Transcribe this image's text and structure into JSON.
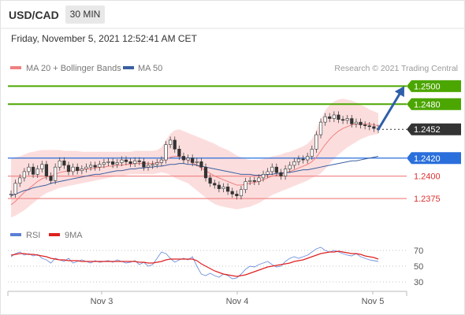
{
  "header": {
    "symbol": "USD/CAD",
    "timeframe": "30 MIN",
    "datetime": "Friday, November 5, 2021 12:52:41 AM CET"
  },
  "legend": {
    "ma": "MA 20 + Bollinger Bands",
    "ma50": "MA 50",
    "credit": "Research © 2021 Trading Central",
    "ma_color": "#f08080",
    "ma50_color": "#3a5fa0"
  },
  "chart_data": [
    {
      "type": "line",
      "title": "",
      "x_ticks": [
        "Nov 3",
        "Nov 4",
        "Nov 5"
      ],
      "ylim": [
        1.2355,
        1.251
      ],
      "levels": [
        {
          "value": 1.25,
          "label": "1.2500",
          "kind": "resistance",
          "color": "#4ca600"
        },
        {
          "value": 1.248,
          "label": "1.2480",
          "kind": "resistance",
          "color": "#4ca600"
        },
        {
          "value": 1.2452,
          "label": "1.2452",
          "kind": "last-price",
          "color": "#333333"
        },
        {
          "value": 1.242,
          "label": "1.2420",
          "kind": "pivot",
          "color": "#2a6fdb"
        },
        {
          "value": 1.24,
          "label": "1.2400",
          "kind": "support",
          "color": "#e05050"
        },
        {
          "value": 1.2375,
          "label": "1.2375",
          "kind": "support",
          "color": "#e05050"
        }
      ],
      "price": [
        1.238,
        1.2392,
        1.2398,
        1.2405,
        1.241,
        1.2402,
        1.2408,
        1.2413,
        1.24,
        1.2395,
        1.241,
        1.2417,
        1.2412,
        1.2405,
        1.241,
        1.2406,
        1.2408,
        1.241,
        1.2412,
        1.241,
        1.2413,
        1.2415,
        1.2416,
        1.2413,
        1.2415,
        1.2418,
        1.2416,
        1.2414,
        1.2417,
        1.2416,
        1.241,
        1.2412,
        1.2413,
        1.2415,
        1.2418,
        1.2435,
        1.244,
        1.243,
        1.2422,
        1.2418,
        1.242,
        1.2415,
        1.2416,
        1.241,
        1.2398,
        1.2392,
        1.239,
        1.2386,
        1.2388,
        1.2383,
        1.238,
        1.2378,
        1.2385,
        1.2394,
        1.2395,
        1.2394,
        1.2398,
        1.2402,
        1.2405,
        1.241,
        1.2404,
        1.24,
        1.2408,
        1.2412,
        1.2416,
        1.2419,
        1.2418,
        1.2422,
        1.243,
        1.2446,
        1.246,
        1.2466,
        1.2464,
        1.2468,
        1.2463,
        1.2462,
        1.2464,
        1.2458,
        1.246,
        1.2457,
        1.2456,
        1.2455,
        1.2453,
        1.2452
      ],
      "price_forecast": [
        1.2452,
        1.25
      ],
      "series": [
        {
          "name": "MA 20 + Bollinger Bands",
          "values": [
            1.2368,
            1.2372,
            1.2377,
            1.2382,
            1.2386,
            1.239,
            1.2394,
            1.2397,
            1.2399,
            1.24,
            1.2402,
            1.2404,
            1.2405,
            1.2406,
            1.2406,
            1.2407,
            1.2407,
            1.2408,
            1.2408,
            1.2409,
            1.241,
            1.241,
            1.2411,
            1.2411,
            1.2412,
            1.2412,
            1.2413,
            1.2413,
            1.2414,
            1.2414,
            1.2414,
            1.2414,
            1.2414,
            1.2415,
            1.2416,
            1.2419,
            1.2421,
            1.2422,
            1.2422,
            1.242,
            1.2418,
            1.2415,
            1.2412,
            1.2409,
            1.2406,
            1.2403,
            1.24,
            1.2398,
            1.2396,
            1.2394,
            1.2392,
            1.239,
            1.239,
            1.2391,
            1.2392,
            1.2393,
            1.2394,
            1.2396,
            1.2398,
            1.24,
            1.2401,
            1.2402,
            1.2404,
            1.2405,
            1.2407,
            1.2409,
            1.2411,
            1.2413,
            1.2416,
            1.2421,
            1.2428,
            1.2435,
            1.2441,
            1.2446,
            1.245,
            1.2453,
            1.2455,
            1.2457,
            1.2458,
            1.2458,
            1.2458,
            1.2458,
            1.2457,
            1.2456
          ]
        },
        {
          "name": "MA 50",
          "values": [
            1.2378,
            1.238,
            1.2382,
            1.2384,
            1.2385,
            1.2387,
            1.2388,
            1.2389,
            1.239,
            1.2392,
            1.2393,
            1.2394,
            1.2395,
            1.2396,
            1.2397,
            1.2398,
            1.2399,
            1.24,
            1.2401,
            1.2402,
            1.2402,
            1.2403,
            1.2404,
            1.2405,
            1.2406,
            1.2406,
            1.2407,
            1.2408,
            1.2408,
            1.2409,
            1.2409,
            1.241,
            1.241,
            1.2411,
            1.2411,
            1.2412,
            1.2413,
            1.2413,
            1.2414,
            1.2414,
            1.2413,
            1.2413,
            1.2412,
            1.2411,
            1.241,
            1.2409,
            1.2408,
            1.2407,
            1.2406,
            1.2405,
            1.2404,
            1.2403,
            1.2402,
            1.2402,
            1.2402,
            1.2401,
            1.2401,
            1.2401,
            1.2402,
            1.2402,
            1.2403,
            1.2403,
            1.2404,
            1.2404,
            1.2405,
            1.2406,
            1.2407,
            1.2407,
            1.2408,
            1.2409,
            1.241,
            1.2411,
            1.2412,
            1.2413,
            1.2414,
            1.2415,
            1.2416,
            1.2417,
            1.2417,
            1.2418,
            1.2419,
            1.242,
            1.2421,
            1.2422
          ]
        }
      ],
      "bollinger_upper": [
        1.242,
        1.2421,
        1.2422,
        1.2424,
        1.2426,
        1.2427,
        1.2428,
        1.2429,
        1.2429,
        1.2429,
        1.2429,
        1.2429,
        1.2428,
        1.2428,
        1.2428,
        1.2428,
        1.2427,
        1.2427,
        1.2427,
        1.2427,
        1.2427,
        1.2427,
        1.2427,
        1.2427,
        1.2427,
        1.2427,
        1.2427,
        1.2427,
        1.2428,
        1.2428,
        1.2428,
        1.2428,
        1.2428,
        1.2429,
        1.2432,
        1.244,
        1.2447,
        1.2451,
        1.2452,
        1.245,
        1.2448,
        1.2446,
        1.2444,
        1.2442,
        1.244,
        1.2438,
        1.2436,
        1.2433,
        1.2431,
        1.2429,
        1.2426,
        1.2423,
        1.2421,
        1.2419,
        1.2418,
        1.2418,
        1.2418,
        1.2419,
        1.242,
        1.2422,
        1.2423,
        1.2424,
        1.2426,
        1.2427,
        1.2429,
        1.2431,
        1.2433,
        1.2436,
        1.2441,
        1.2451,
        1.2463,
        1.2473,
        1.2479,
        1.2483,
        1.2485,
        1.2486,
        1.2485,
        1.2484,
        1.2482,
        1.2479,
        1.2477,
        1.2474,
        1.2472,
        1.247
      ],
      "bollinger_lower": [
        1.2354,
        1.2356,
        1.2359,
        1.2362,
        1.2366,
        1.237,
        1.2374,
        1.2378,
        1.2381,
        1.2383,
        1.2385,
        1.2387,
        1.2388,
        1.2389,
        1.239,
        1.2391,
        1.2392,
        1.2393,
        1.2394,
        1.2395,
        1.2396,
        1.2397,
        1.2398,
        1.2399,
        1.24,
        1.24,
        1.2401,
        1.2402,
        1.2402,
        1.2402,
        1.2402,
        1.2402,
        1.2402,
        1.2403,
        1.2404,
        1.2403,
        1.2401,
        1.2398,
        1.2396,
        1.2394,
        1.2392,
        1.2388,
        1.2384,
        1.238,
        1.2376,
        1.2372,
        1.2369,
        1.2367,
        1.2366,
        1.2365,
        1.2364,
        1.2363,
        1.2364,
        1.2365,
        1.2366,
        1.2368,
        1.237,
        1.2373,
        1.2376,
        1.2379,
        1.2381,
        1.2383,
        1.2385,
        1.2387,
        1.2389,
        1.2391,
        1.2393,
        1.2395,
        1.2398,
        1.24,
        1.2403,
        1.2408,
        1.2414,
        1.2419,
        1.2424,
        1.2428,
        1.2432,
        1.2435,
        1.2438,
        1.2441,
        1.2443,
        1.2445,
        1.2446,
        1.2447
      ]
    },
    {
      "type": "line",
      "title": "",
      "ylim": [
        20,
        80
      ],
      "y_ticks": [
        70,
        50,
        30
      ],
      "legend": [
        "RSI",
        "9MA"
      ],
      "series": [
        {
          "name": "RSI",
          "values": [
            62,
            66,
            68,
            64,
            66,
            63,
            65,
            60,
            58,
            54,
            60,
            58,
            56,
            60,
            54,
            56,
            58,
            56,
            54,
            57,
            55,
            56,
            57,
            55,
            58,
            56,
            54,
            55,
            57,
            52,
            55,
            50,
            52,
            60,
            68,
            66,
            60,
            55,
            58,
            60,
            58,
            62,
            50,
            40,
            38,
            41,
            38,
            36,
            40,
            38,
            34,
            35,
            40,
            46,
            50,
            49,
            52,
            54,
            56,
            52,
            49,
            50,
            56,
            60,
            62,
            60,
            62,
            64,
            68,
            72,
            74,
            70,
            68,
            70,
            68,
            66,
            64,
            63,
            66,
            62,
            60,
            58,
            57,
            56
          ]
        },
        {
          "name": "9MA",
          "values": [
            64,
            65,
            66,
            66,
            65,
            65,
            64,
            63,
            62,
            60,
            59,
            58,
            58,
            57,
            57,
            57,
            56,
            56,
            56,
            56,
            56,
            56,
            56,
            56,
            56,
            56,
            56,
            56,
            56,
            55,
            55,
            54,
            54,
            55,
            56,
            58,
            59,
            59,
            59,
            59,
            59,
            59,
            57,
            53,
            50,
            47,
            44,
            42,
            40,
            39,
            38,
            37,
            38,
            39,
            41,
            43,
            45,
            47,
            49,
            50,
            51,
            52,
            53,
            54,
            56,
            57,
            58,
            60,
            62,
            64,
            66,
            67,
            68,
            68,
            69,
            68,
            67,
            66,
            66,
            65,
            63,
            62,
            61,
            59
          ]
        }
      ]
    }
  ]
}
